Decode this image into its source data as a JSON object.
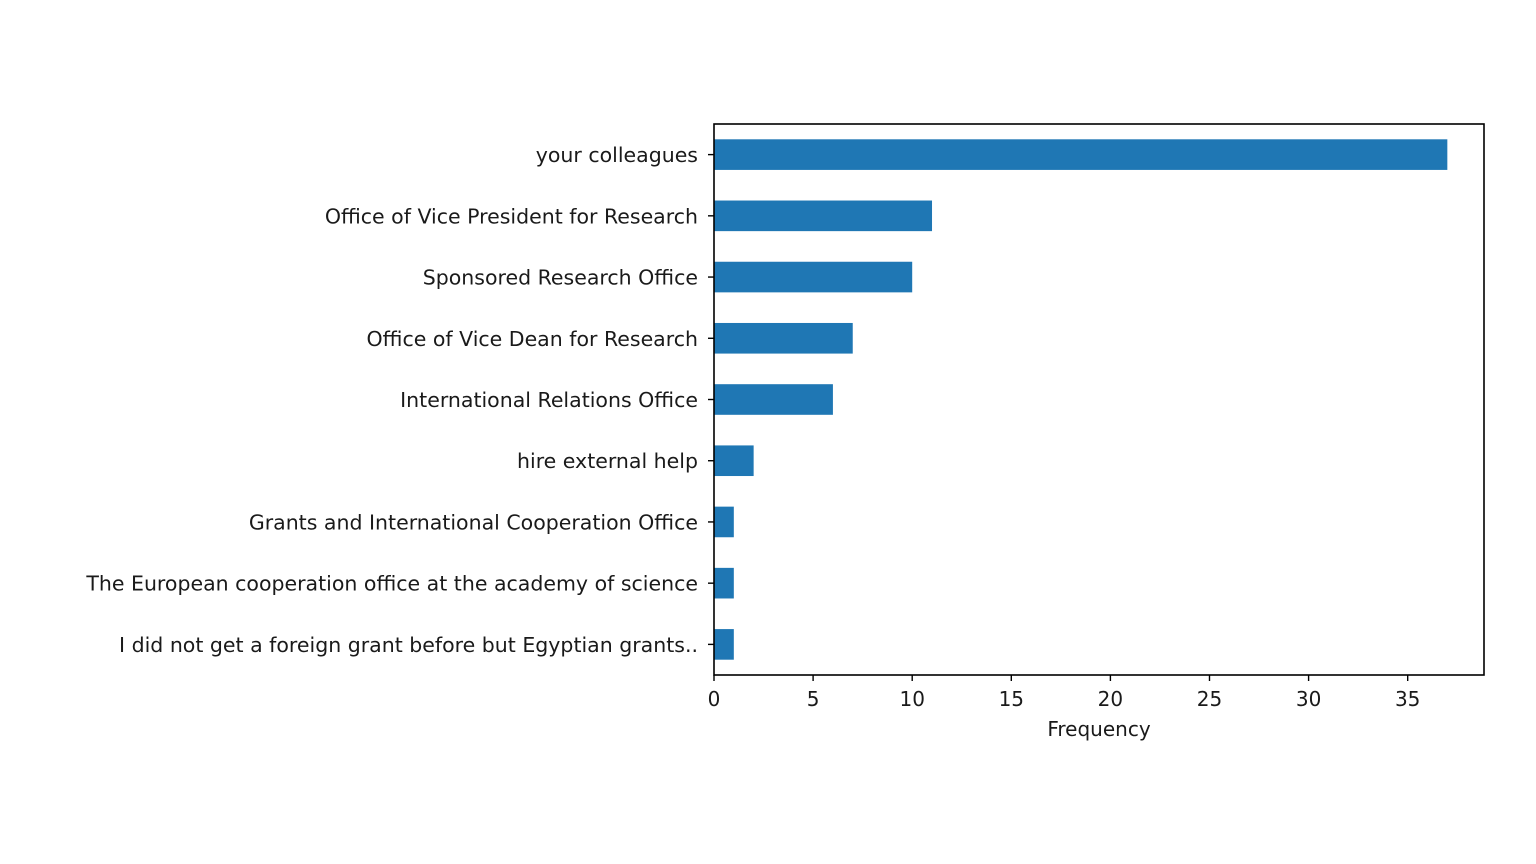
{
  "chart_data": {
    "type": "bar",
    "orientation": "horizontal",
    "categories": [
      "your colleagues",
      "Office of Vice President for Research",
      "Sponsored Research Office",
      "Office of Vice Dean for Research ",
      "International Relations Office",
      "hire external help",
      "Grants and International Cooperation Office",
      "The European cooperation office at the academy of science",
      "I did not get a foreign grant before but Egyptian grants.."
    ],
    "values": [
      37,
      11,
      10,
      7,
      6,
      2,
      1,
      1,
      1
    ],
    "title": "",
    "xlabel": "Frequency",
    "ylabel": "",
    "xlim": [
      0,
      38.85
    ],
    "xticks": [
      0,
      5,
      10,
      15,
      20,
      25,
      30,
      35
    ],
    "grid": false,
    "bar_color": "#1f77b4"
  }
}
